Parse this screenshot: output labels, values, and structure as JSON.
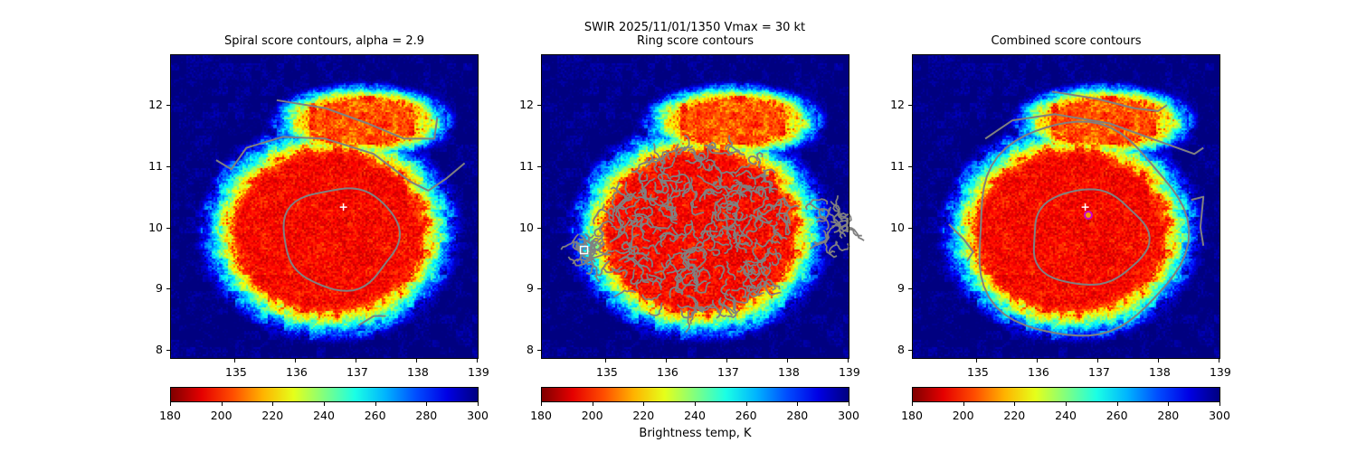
{
  "suptitle": "SWIR  2025/11/01/1350    Vmax = 30 kt",
  "chart_data": [
    {
      "type": "heatmap",
      "title": "Spiral score contours, alpha =  2.9",
      "xlim": [
        133.94,
        139.03
      ],
      "ylim": [
        7.85,
        12.83
      ],
      "xticks": [
        "135",
        "136",
        "137",
        "138",
        "139"
      ],
      "yticks": [
        "8",
        "9",
        "10",
        "11",
        "12"
      ],
      "colorbar": {
        "range": [
          180,
          300
        ],
        "ticks": [
          "180",
          "200",
          "220",
          "240",
          "260",
          "280",
          "300"
        ],
        "colormap": "jet_r",
        "label": ""
      },
      "contour_color": "#808080",
      "contours": [
        {
          "closed": false,
          "points": [
            [
              135.7,
              12.08
            ],
            [
              136.5,
              11.95
            ],
            [
              137.2,
              11.7
            ],
            [
              137.8,
              11.45
            ],
            [
              138.3,
              11.45
            ],
            [
              138.35,
              11.8
            ]
          ]
        },
        {
          "closed": false,
          "points": [
            [
              134.7,
              11.1
            ],
            [
              134.95,
              10.95
            ],
            [
              135.2,
              11.3
            ],
            [
              135.8,
              11.48
            ],
            [
              136.5,
              11.45
            ],
            [
              137.3,
              11.2
            ],
            [
              137.9,
              10.75
            ],
            [
              138.2,
              10.6
            ],
            [
              138.5,
              10.8
            ],
            [
              138.8,
              11.05
            ]
          ]
        },
        {
          "closed": false,
          "points": [
            [
              137.05,
              8.4
            ],
            [
              137.3,
              8.55
            ],
            [
              137.5,
              8.55
            ]
          ]
        },
        {
          "closed": true,
          "ellipse": [
            136.75,
            9.83,
            0.95,
            0.83
          ]
        }
      ],
      "markers": [
        {
          "type": "plus",
          "x": 136.8,
          "y": 10.33,
          "color": "#ffffff"
        }
      ]
    },
    {
      "type": "heatmap",
      "title": "Ring score contours",
      "xlim": [
        133.94,
        139.03
      ],
      "ylim": [
        7.85,
        12.83
      ],
      "xticks": [
        "135",
        "136",
        "137",
        "138",
        "139"
      ],
      "yticks": [
        "8",
        "9",
        "10",
        "11",
        "12"
      ],
      "colorbar": {
        "range": [
          180,
          300
        ],
        "ticks": [
          "180",
          "200",
          "220",
          "240",
          "260",
          "280",
          "300"
        ],
        "colormap": "jet_r",
        "label": "Brightness temp, K"
      },
      "contour_color": "#808080",
      "contour_regions": [
        [
          136.5,
          10.0,
          1.55,
          1.4
        ],
        [
          134.75,
          9.75,
          0.25,
          0.35
        ],
        [
          138.8,
          10.1,
          0.25,
          0.35
        ]
      ],
      "markers": [
        {
          "type": "square",
          "x": 134.65,
          "y": 9.63,
          "color": "#ffffff"
        }
      ]
    },
    {
      "type": "heatmap",
      "title": "Combined score contours",
      "xlim": [
        133.94,
        139.03
      ],
      "ylim": [
        7.85,
        12.83
      ],
      "xticks": [
        "135",
        "136",
        "137",
        "138",
        "139"
      ],
      "yticks": [
        "8",
        "9",
        "10",
        "11",
        "12"
      ],
      "colorbar": {
        "range": [
          180,
          300
        ],
        "ticks": [
          "180",
          "200",
          "220",
          "240",
          "260",
          "280",
          "300"
        ],
        "colormap": "jet_r",
        "label": ""
      },
      "contour_color": "#808080",
      "contours": [
        {
          "closed": false,
          "points": [
            [
              136.25,
              12.22
            ],
            [
              137.0,
              12.1
            ],
            [
              137.6,
              11.95
            ],
            [
              138.0,
              11.9
            ],
            [
              138.15,
              12.0
            ]
          ]
        },
        {
          "closed": false,
          "points": [
            [
              135.15,
              11.45
            ],
            [
              135.6,
              11.75
            ],
            [
              136.3,
              11.85
            ],
            [
              137.2,
              11.7
            ],
            [
              137.9,
              11.45
            ],
            [
              138.6,
              11.2
            ],
            [
              138.75,
              11.3
            ]
          ]
        },
        {
          "closed": true,
          "ellipse": [
            136.68,
            9.95,
            1.72,
            1.75
          ]
        },
        {
          "closed": true,
          "ellipse": [
            136.85,
            9.83,
            0.95,
            0.78
          ]
        },
        {
          "closed": false,
          "points": [
            [
              134.55,
              10.05
            ],
            [
              134.8,
              9.8
            ],
            [
              134.95,
              9.6
            ],
            [
              134.85,
              9.45
            ]
          ]
        },
        {
          "closed": false,
          "points": [
            [
              138.55,
              10.45
            ],
            [
              138.75,
              10.5
            ],
            [
              138.7,
              10.0
            ],
            [
              138.75,
              9.7
            ]
          ]
        }
      ],
      "markers": [
        {
          "type": "plus",
          "x": 136.8,
          "y": 10.33,
          "color": "#ffffff"
        },
        {
          "type": "circle",
          "x": 136.85,
          "y": 10.2,
          "color": "#cc00cc"
        }
      ]
    }
  ]
}
